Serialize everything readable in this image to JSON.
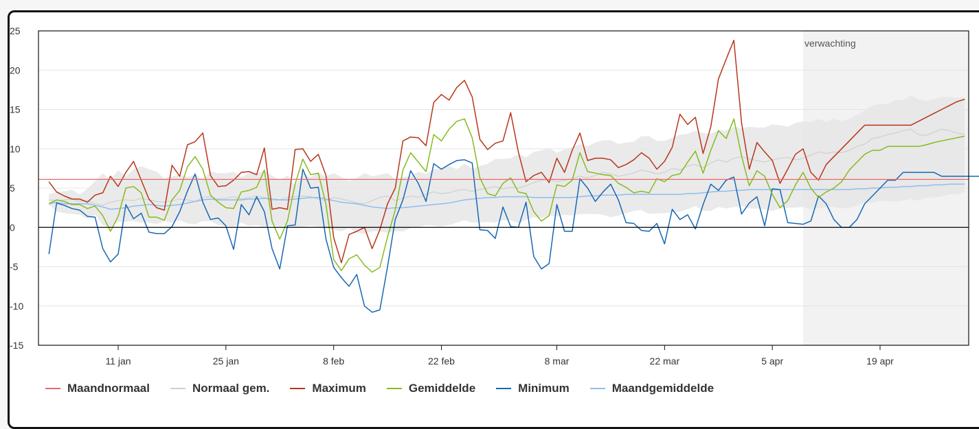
{
  "forecast_label": "verwachting",
  "colors": {
    "maandnormaal": "#e8696b",
    "normaal": "#cfcfcf",
    "normaal_band": "#e6e6e6",
    "maximum": "#b8351a",
    "gemiddelde": "#85bb1e",
    "minimum": "#1667b5",
    "maandgemiddelde": "#8fbcef",
    "forecast_bg": "#f2f2f2"
  },
  "legend": [
    {
      "label": "Maandnormaal",
      "color": "#e8696b"
    },
    {
      "label": "Normaal gem.",
      "color": "#cfcfcf"
    },
    {
      "label": "Maximum",
      "color": "#b8351a"
    },
    {
      "label": "Gemiddelde",
      "color": "#85bb1e"
    },
    {
      "label": "Minimum",
      "color": "#1667b5"
    },
    {
      "label": "Maandgemiddelde",
      "color": "#8fbcef"
    }
  ],
  "chart_data": {
    "type": "line",
    "x_start": "2024-01-02",
    "x_ticks": [
      "11 jan",
      "25 jan",
      "8 feb",
      "22 feb",
      "8 mar",
      "22 mar",
      "5 apr",
      "19 apr"
    ],
    "x_tick_dates": [
      "2024-01-11",
      "2024-01-25",
      "2024-02-08",
      "2024-02-22",
      "2024-03-08",
      "2024-03-22",
      "2024-04-05",
      "2024-04-19"
    ],
    "y_ticks": [
      25,
      20,
      15,
      10,
      5,
      0,
      -5,
      -10,
      -15
    ],
    "ylim": [
      -15,
      25
    ],
    "forecast_start": "2024-04-09",
    "maandnormaal": 6.1,
    "series": [
      {
        "name": "Maximum",
        "values": [
          5.8,
          4.5,
          4,
          3.6,
          3.6,
          3.2,
          4.1,
          4.4,
          6.5,
          5.2,
          7,
          8.4,
          6,
          3.6,
          2.5,
          2.2,
          7.9,
          6.5,
          10.5,
          10.9,
          12,
          6.6,
          5.2,
          5.3,
          6,
          7,
          7.1,
          6.7,
          10.1,
          2.3,
          2.5,
          2.3,
          9.9,
          10,
          8.4,
          9.3,
          6.6,
          -1.3,
          -4.5,
          -0.9,
          -0.5,
          0,
          -2.7,
          -0.3,
          3,
          5,
          11,
          11.5,
          11.4,
          10.4,
          15.9,
          16.9,
          16.2,
          17.8,
          18.7,
          16.6,
          11.2,
          9.9,
          10.7,
          11,
          14.6,
          9.6,
          5.8,
          6.6,
          7,
          5.7,
          8.8,
          7,
          9.8,
          12,
          8.5,
          8.8,
          8.8,
          8.6,
          7.6,
          8,
          8.6,
          9.5,
          8.8,
          7.4,
          8.4,
          10.2,
          14.4,
          13.1,
          14,
          9.4,
          12.8,
          18.9,
          21.4,
          23.8,
          13.3,
          7.4,
          10.8,
          9.6,
          8.5,
          5.6,
          7.4,
          9.3,
          10,
          7,
          6,
          8,
          9,
          10,
          11,
          12,
          13,
          13,
          13,
          13,
          13,
          13,
          13,
          13.5,
          14,
          14.5,
          15,
          15.5,
          16,
          16.3
        ]
      },
      {
        "name": "Gemiddelde",
        "values": [
          3,
          3.5,
          3.3,
          2.9,
          2.9,
          2.4,
          2.7,
          1.5,
          -0.5,
          1.4,
          5,
          5.2,
          4.4,
          1.3,
          1.3,
          0.9,
          3.5,
          4.7,
          7.7,
          9,
          7.4,
          4.1,
          3.2,
          2.5,
          2.4,
          4.5,
          4.7,
          5.1,
          7.3,
          0.8,
          -1.5,
          0.8,
          5.5,
          8.7,
          6.7,
          6.9,
          2.9,
          -4.1,
          -5.5,
          -4,
          -3.5,
          -4.8,
          -5.7,
          -5.1,
          -1.2,
          2.2,
          7.3,
          9.5,
          8.3,
          7.1,
          11.8,
          11,
          12.5,
          13.5,
          13.8,
          11.4,
          6.3,
          4.3,
          4,
          5.6,
          6.3,
          4.5,
          4.3,
          2,
          0.8,
          1.5,
          5.4,
          5.2,
          6,
          9.5,
          7.1,
          6.9,
          6.7,
          6.6,
          5.6,
          5.1,
          4.4,
          4.6,
          4.4,
          6.2,
          5.8,
          6.6,
          6.8,
          8.3,
          9.7,
          6.9,
          9.8,
          12.3,
          11.3,
          13.8,
          9.1,
          5.3,
          7.2,
          6.5,
          4.2,
          2.5,
          3.4,
          5.4,
          7,
          5,
          3.8,
          4.5,
          5,
          5.8,
          7.3,
          8.3,
          9.3,
          9.8,
          9.8,
          10.3,
          10.3,
          10.3,
          10.3,
          10.3,
          10.5,
          10.8,
          11,
          11.2,
          11.4,
          11.6
        ]
      },
      {
        "name": "Minimum",
        "values": [
          -3.4,
          3.1,
          2.8,
          2.4,
          2.2,
          1.4,
          1.3,
          -2.7,
          -4.4,
          -3.4,
          2.9,
          1.1,
          1.8,
          -0.6,
          -0.8,
          -0.8,
          0.1,
          2,
          4.6,
          6.8,
          3.2,
          1,
          1.2,
          0.2,
          -2.8,
          2.9,
          1.6,
          3.9,
          2,
          -2.7,
          -5.3,
          0.2,
          0.3,
          7.4,
          5,
          5.1,
          -1.5,
          -5.1,
          -6.4,
          -7.5,
          -6,
          -10,
          -10.8,
          -10.5,
          -5,
          1,
          3.5,
          7.2,
          5.6,
          3.3,
          8.1,
          7.4,
          8,
          8.5,
          8.6,
          8.2,
          -0.3,
          -0.4,
          -1.4,
          2.6,
          0.1,
          0,
          3.2,
          -3.7,
          -5.3,
          -4.6,
          2.9,
          -0.5,
          -0.5,
          6.2,
          5,
          3.3,
          4.5,
          5.5,
          3.5,
          0.6,
          0.5,
          -0.4,
          -0.5,
          0.5,
          -2.1,
          2.3,
          1,
          1.6,
          -0.2,
          2.9,
          5.5,
          4.7,
          6,
          6.4,
          1.7,
          3.1,
          3.9,
          0.2,
          4.9,
          4.8,
          0.6,
          0.5,
          0.4,
          0.8,
          4,
          3,
          1,
          0,
          0,
          1,
          3,
          4,
          5,
          6,
          6,
          7,
          7,
          7,
          7,
          7,
          6.5,
          6.5,
          6.5,
          6.5,
          6.5,
          6.5,
          6.6,
          6.6
        ]
      },
      {
        "name": "Normaal gem.",
        "values": [
          3.5,
          3.4,
          3.5,
          3.6,
          3.3,
          3.4,
          3,
          2.8,
          3.2,
          3.4,
          3.5,
          3.4,
          3.7,
          3.5,
          3.3,
          3.2,
          3.4,
          3.6,
          3.5,
          3.3,
          3.8,
          3.9,
          3.6,
          3.7,
          3.9,
          3.6,
          3.8,
          4,
          3.8,
          3.4,
          3.5,
          3.8,
          3.9,
          4,
          3.9,
          3.6,
          3.4,
          3.8,
          3.6,
          3.4,
          3.1,
          3,
          3.4,
          3.8,
          4,
          3.4,
          3.7,
          4,
          3.8,
          4.2,
          4.5,
          4.3,
          4.4,
          4.7,
          4.8,
          4.6,
          4.8,
          5,
          5.2,
          4.9,
          5.1,
          5,
          5.3,
          5.7,
          6,
          6.1,
          5.8,
          6,
          6.2,
          6.5,
          6.3,
          6.6,
          7,
          6.8,
          6.5,
          6.7,
          6.9,
          7.3,
          7.1,
          6.8,
          7,
          7.5,
          7.3,
          7.8,
          8,
          7.6,
          8.2,
          8.6,
          8.3,
          8.8,
          9,
          8.7,
          8.5,
          8.3,
          8.6,
          8.8,
          8.9,
          8.6,
          8.8,
          9.2,
          9.6,
          9.4,
          9.6,
          9.5,
          9.8,
          10.3,
          10.6,
          11.3,
          11.5,
          11.8,
          12,
          12.3,
          12.5,
          11.8,
          11.7,
          12.1,
          12.5,
          12.3,
          12,
          11.8
        ]
      },
      {
        "name": "Maandgemiddelde",
        "values": [
          3,
          3.2,
          3,
          3,
          3,
          3,
          2.8,
          2.6,
          2.3,
          2.4,
          2.5,
          2.7,
          2.8,
          2.9,
          2.8,
          2.7,
          2.8,
          2.9,
          3.1,
          3.3,
          3.5,
          3.6,
          3.5,
          3.5,
          3.5,
          3.5,
          3.6,
          3.6,
          3.7,
          3.6,
          3.5,
          3.5,
          3.6,
          3.7,
          3.8,
          3.8,
          3.6,
          3.4,
          3.2,
          3.1,
          3,
          2.8,
          2.6,
          2.5,
          2.4,
          2.5,
          2.5,
          2.6,
          2.7,
          2.8,
          2.9,
          3,
          3.1,
          3.3,
          3.5,
          3.6,
          3.7,
          3.8,
          3.8,
          3.9,
          3.9,
          3.9,
          3.9,
          3.8,
          3.8,
          3.8,
          3.8,
          3.8,
          3.8,
          3.9,
          4,
          4,
          4.1,
          4.1,
          4.1,
          4.2,
          4.2,
          4.2,
          4.2,
          4.2,
          4.2,
          4.2,
          4.2,
          4.3,
          4.3,
          4.4,
          4.5,
          4.6,
          4.6,
          4.7,
          4.7,
          4.8,
          4.8,
          4.8,
          4.8,
          4.8,
          4.8,
          4.8,
          4.8,
          4.8,
          4.8,
          4.8,
          4.8,
          4.8,
          4.8,
          4.9,
          4.9,
          5,
          5,
          5.1,
          5.1,
          5.2,
          5.2,
          5.3,
          5.3,
          5.4,
          5.4,
          5.5,
          5.5,
          5.5
        ]
      }
    ],
    "normaal_band": {
      "upper": [
        4.2,
        4.5,
        4.6,
        4.8,
        4.2,
        4.9,
        5.9,
        6.9,
        6,
        7.3,
        6.5,
        7.4,
        7.8,
        7.4,
        7.1,
        6.2,
        6.5,
        6.7,
        6.4,
        6.7,
        6.2,
        7.1,
        6.9,
        6.9,
        7.1,
        6.4,
        6.9,
        6.9,
        7.2,
        6.6,
        6,
        6.6,
        5.3,
        6.9,
        6.4,
        7,
        6.5,
        6.9,
        6.4,
        5.9,
        6.3,
        6.9,
        6.5,
        6.7,
        6.9,
        6.1,
        6.4,
        6.5,
        7.1,
        6.8,
        7.4,
        7.5,
        7.8,
        7.4,
        8.1,
        7.5,
        7.8,
        8.1,
        8.7,
        8.7,
        8.8,
        9.3,
        8.9,
        9.6,
        9.8,
        10.1,
        9.5,
        9.9,
        10.2,
        10.6,
        10.3,
        10.8,
        11.1,
        11.1,
        10.6,
        10.8,
        10.9,
        11.6,
        11.6,
        11,
        11,
        11.4,
        11.8,
        11.9,
        12.3,
        12,
        11.9,
        12.4,
        12.3,
        12.8,
        12.6,
        12.8,
        12.7,
        12.7,
        13.1,
        13,
        12.8,
        13.3,
        13.5,
        13.4,
        13.8,
        13.4,
        13.8,
        13.5,
        13.8,
        14.3,
        14.9,
        15.5,
        15.7,
        15.7,
        16.2,
        16.2,
        16.8,
        16.3,
        16.1,
        16.3,
        16.6,
        16.6,
        16.5,
        16.5
      ],
      "lower": [
        2.9,
        2,
        1.8,
        1.7,
        1.6,
        1.1,
        1.6,
        0.3,
        0,
        0.7,
        0.7,
        0.8,
        0.6,
        0.6,
        0.4,
        0.8,
        0.6,
        0.9,
        0.5,
        0.4,
        0.8,
        0.8,
        0.3,
        0.2,
        0.1,
        0.6,
        0.2,
        0.3,
        0.1,
        0.3,
        0.1,
        0.2,
        -0.1,
        0.1,
        0.2,
        0.1,
        -0.1,
        -0.3,
        -0.5,
        -0.1,
        -0.7,
        -0.8,
        -0.5,
        -0.5,
        -0.7,
        -0.5,
        -0.5,
        -0.1,
        0,
        0.3,
        0.2,
        0.1,
        0.3,
        0.6,
        0.9,
        0.6,
        0.6,
        0.7,
        0.6,
        0.9,
        0.9,
        0.5,
        1,
        1.3,
        1.2,
        1.5,
        1.4,
        1.6,
        1.5,
        1.7,
        1.7,
        1.7,
        1.6,
        1.3,
        1.5,
        1.8,
        2.1,
        2.2,
        1.7,
        1.8,
        1.8,
        1.9,
        2,
        2.3,
        2.7,
        2.1,
        2.1,
        2.6,
        2.4,
        2.6,
        2.7,
        2.4,
        2.4,
        2.3,
        2.1,
        2.4,
        2.5,
        2.5,
        2.6,
        2.3,
        2.4,
        2.6,
        2.6,
        2.4,
        2.5,
        2.8,
        3.2,
        3.1,
        3.4,
        3.3,
        3.3,
        3.4,
        3.6,
        3.4,
        3.8,
        3.8,
        3.9,
        4.2,
        4.2,
        4.5
      ]
    }
  }
}
